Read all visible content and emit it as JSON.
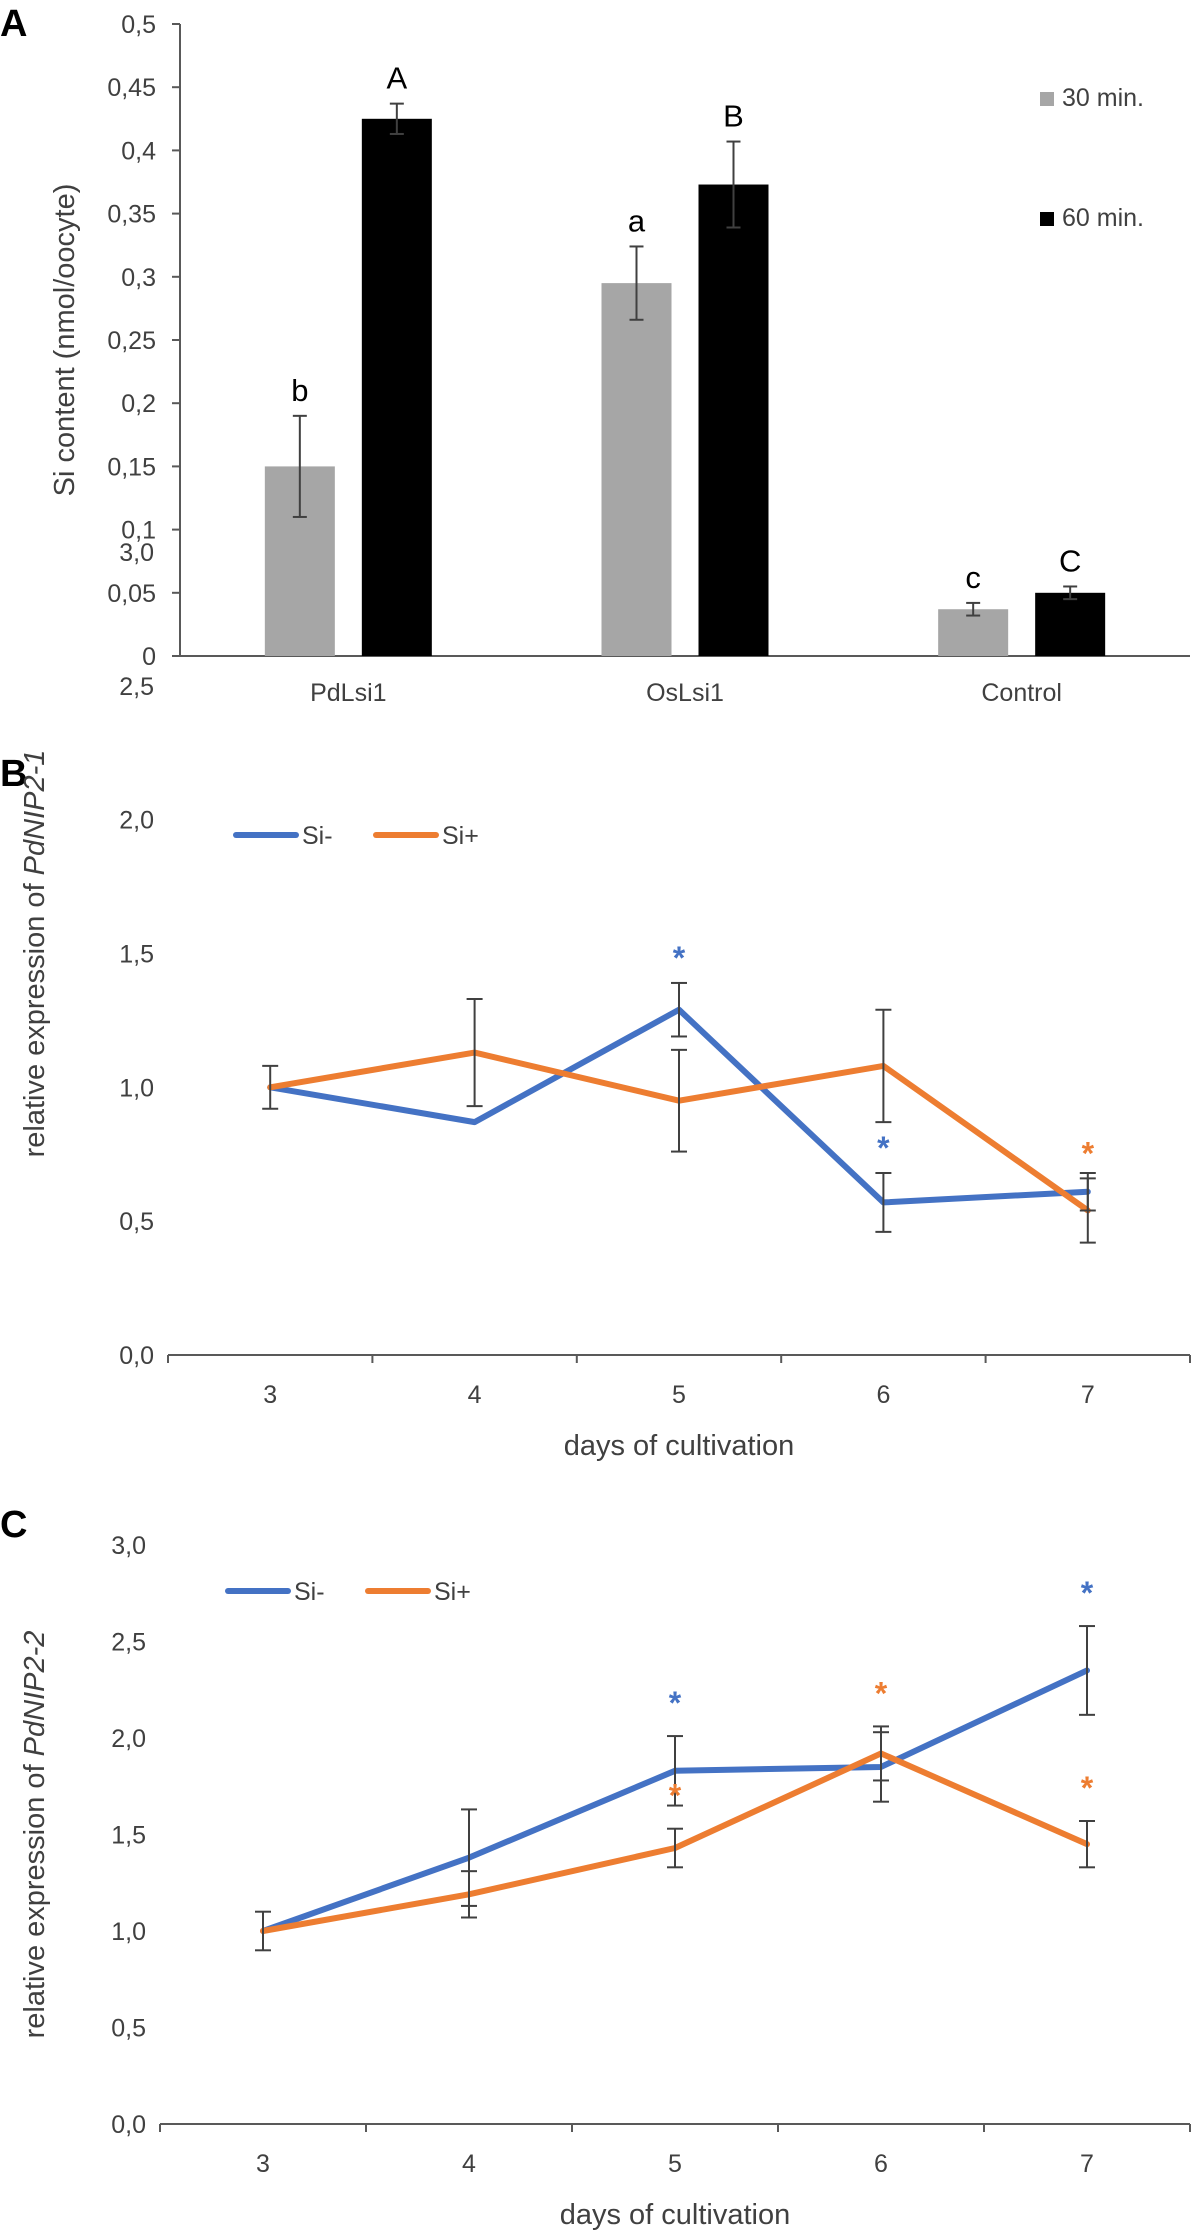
{
  "chart_data": [
    {
      "panel": "A",
      "type": "bar",
      "ylabel": "Si content (nmol/oocyte)",
      "xlabel": "",
      "ylim": [
        0,
        0.5
      ],
      "yticks": [
        "0",
        "0,05",
        "0,1",
        "0,15",
        "0,2",
        "0,25",
        "0,3",
        "0,35",
        "0,4",
        "0,45",
        "0,5"
      ],
      "categories": [
        "PdLsi1",
        "OsLsi1",
        "Control"
      ],
      "series": [
        {
          "name": "30 min.",
          "color": "#a6a6a6",
          "values": [
            0.15,
            0.295,
            0.037
          ],
          "errors": [
            0.04,
            0.029,
            0.005
          ],
          "labels": [
            "b",
            "a",
            "c"
          ]
        },
        {
          "name": "60 min.",
          "color": "#000000",
          "values": [
            0.425,
            0.373,
            0.05
          ],
          "errors": [
            0.012,
            0.034,
            0.005
          ],
          "labels": [
            "A",
            "B",
            "C"
          ]
        }
      ]
    },
    {
      "panel": "B",
      "type": "line",
      "ylabel_prefix": "relative  expression of ",
      "ylabel_gene": "PdNIP2-1",
      "xlabel": "days of cultivation",
      "ylim": [
        0,
        3
      ],
      "yticks": [
        "0,0",
        "0,5",
        "1,0",
        "1,5",
        "2,0",
        "2,5",
        "3,0"
      ],
      "x": [
        "3",
        "4",
        "5",
        "6",
        "7"
      ],
      "series": [
        {
          "name": "Si-",
          "color": "#4472c4",
          "values": [
            1.0,
            0.87,
            1.29,
            0.57,
            0.61
          ],
          "errors": [
            0.08,
            0.0,
            0.1,
            0.11,
            0.07
          ],
          "stars": [
            false,
            false,
            true,
            true,
            false
          ]
        },
        {
          "name": "Si+",
          "color": "#ed7d31",
          "values": [
            1.0,
            1.13,
            0.95,
            1.08,
            0.54
          ],
          "errors": [
            0.0,
            0.2,
            0.19,
            0.21,
            0.12
          ],
          "stars": [
            false,
            false,
            false,
            false,
            true
          ]
        }
      ],
      "star_symbol": "*"
    },
    {
      "panel": "C",
      "type": "line",
      "ylabel_prefix": "relative  expression of ",
      "ylabel_gene": "PdNIP2-2",
      "xlabel": "days of cultivation",
      "ylim": [
        0,
        3
      ],
      "yticks": [
        "0,0",
        "0,5",
        "1,0",
        "1,5",
        "2,0",
        "2,5",
        "3,0"
      ],
      "x": [
        "3",
        "4",
        "5",
        "6",
        "7"
      ],
      "series": [
        {
          "name": "Si-",
          "color": "#4472c4",
          "values": [
            1.0,
            1.38,
            1.83,
            1.85,
            2.35
          ],
          "errors": [
            0.1,
            0.25,
            0.18,
            0.18,
            0.23
          ],
          "stars": [
            false,
            false,
            true,
            false,
            true
          ]
        },
        {
          "name": "Si+",
          "color": "#ed7d31",
          "values": [
            1.0,
            1.19,
            1.43,
            1.92,
            1.45
          ],
          "errors": [
            0.0,
            0.12,
            0.1,
            0.14,
            0.12
          ],
          "stars": [
            false,
            false,
            true,
            true,
            true
          ]
        }
      ],
      "star_symbol": "*"
    }
  ]
}
